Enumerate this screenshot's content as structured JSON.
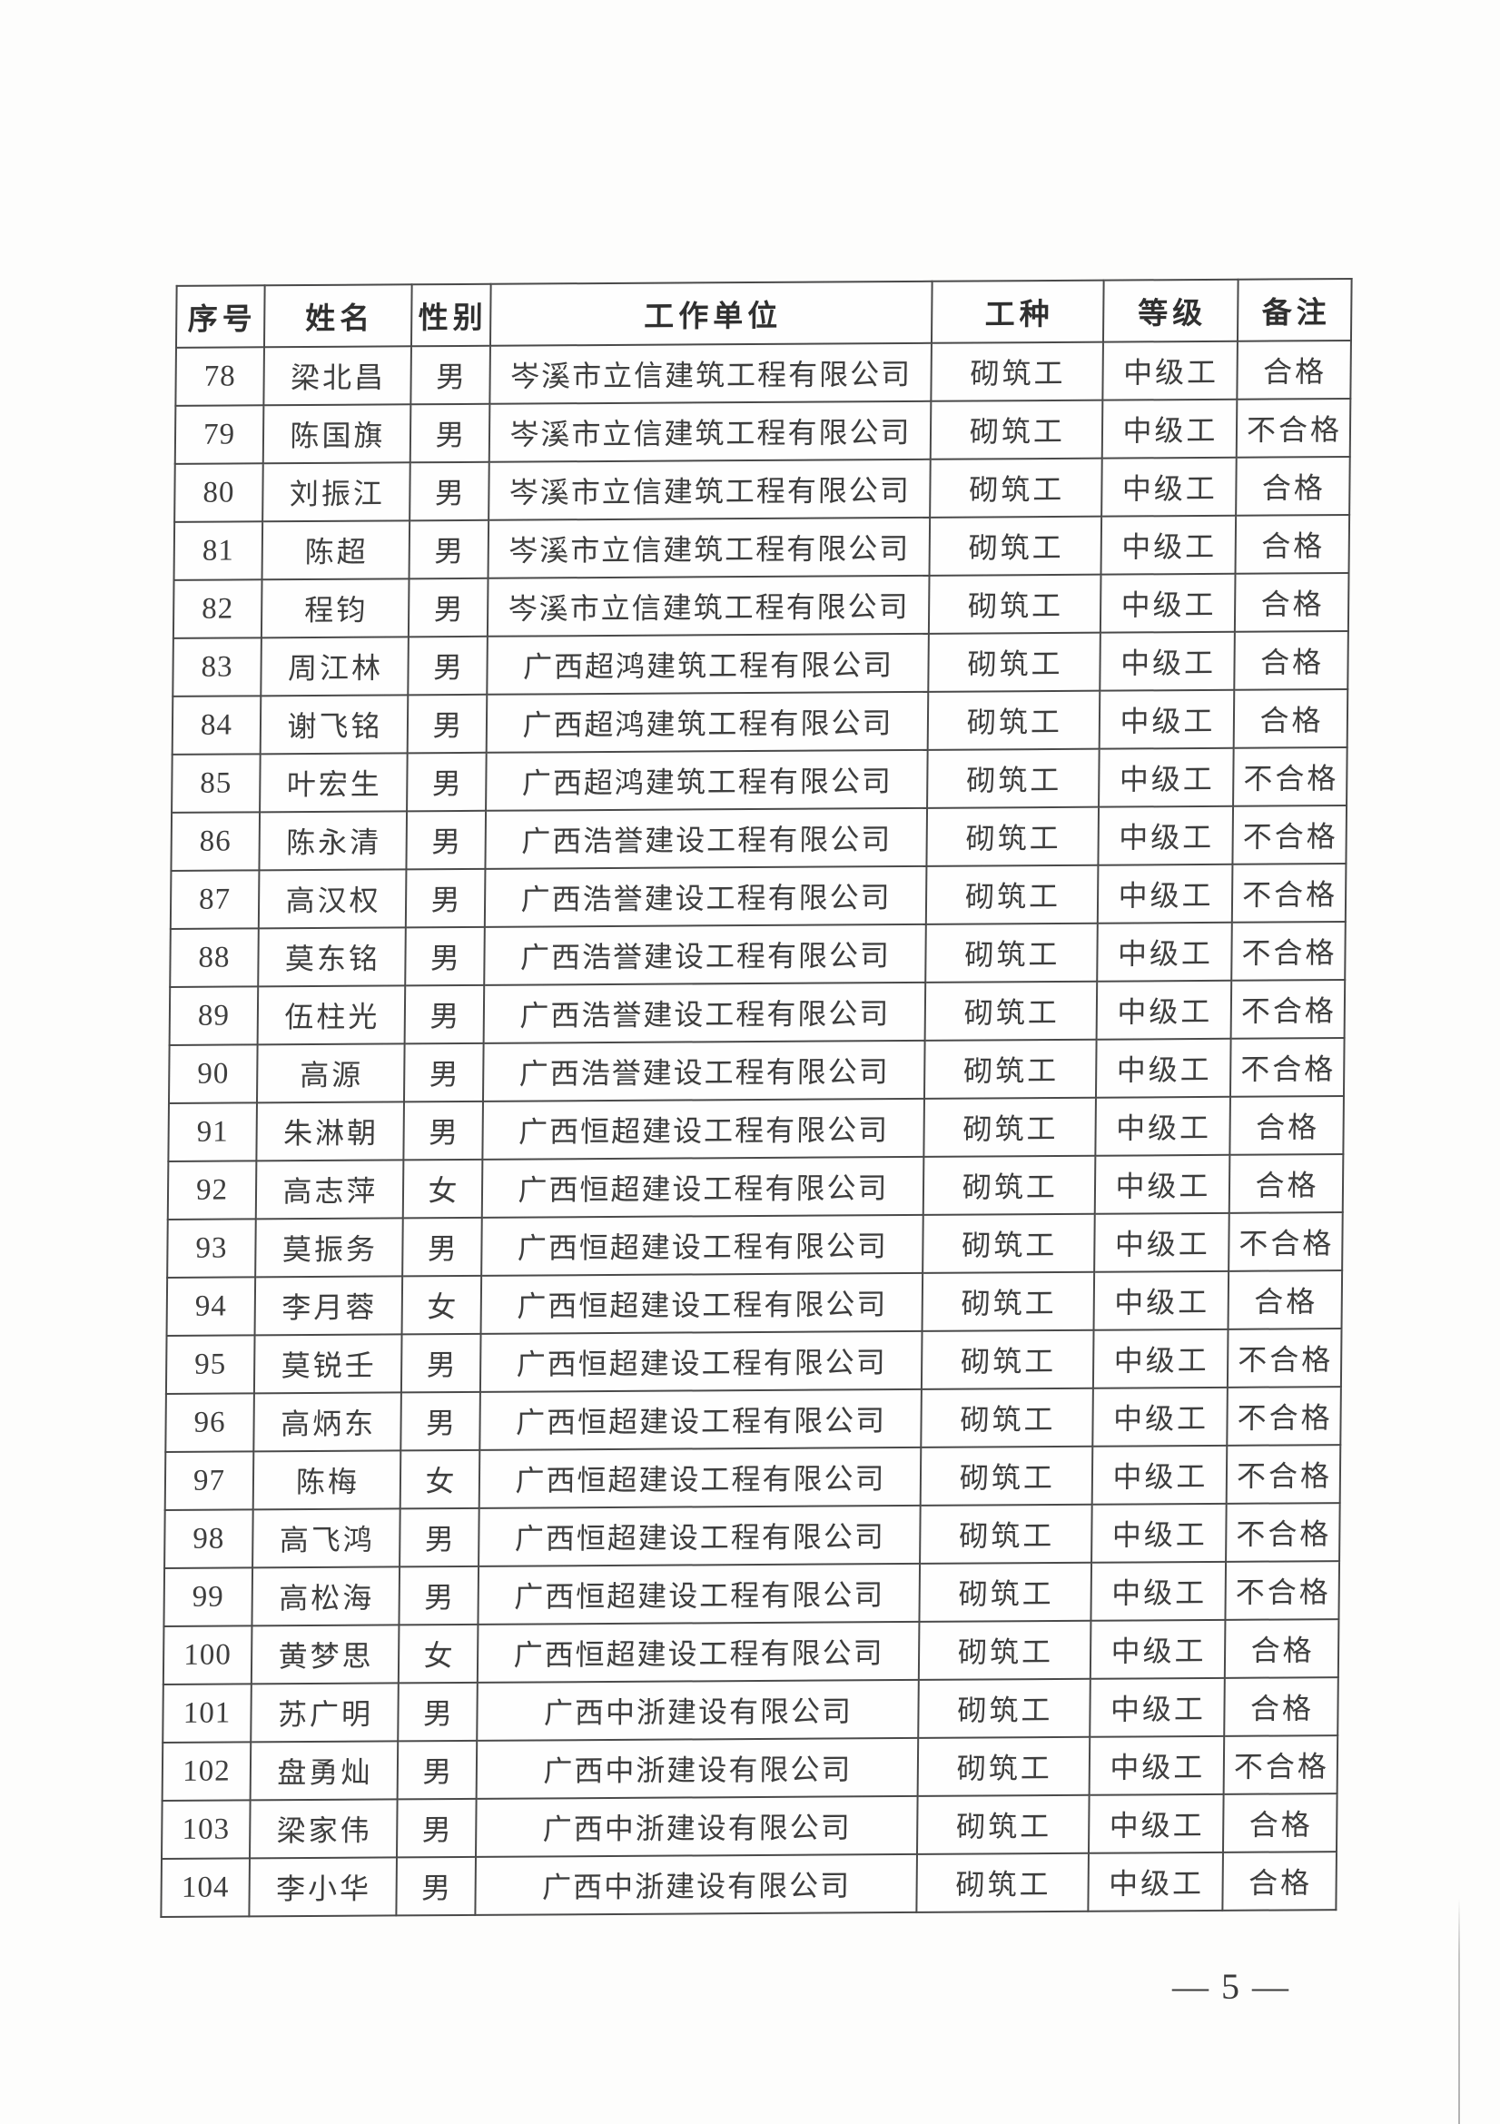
{
  "table": {
    "columns": [
      {
        "key": "no",
        "label": "序号"
      },
      {
        "key": "name",
        "label": "姓名"
      },
      {
        "key": "gender",
        "label": "性别"
      },
      {
        "key": "company",
        "label": "工作单位"
      },
      {
        "key": "trade",
        "label": "工种"
      },
      {
        "key": "level",
        "label": "等级"
      },
      {
        "key": "remark",
        "label": "备注"
      }
    ],
    "rows": [
      {
        "no": "78",
        "name": "梁北昌",
        "gender": "男",
        "company": "岑溪市立信建筑工程有限公司",
        "trade": "砌筑工",
        "level": "中级工",
        "remark": "合格"
      },
      {
        "no": "79",
        "name": "陈国旗",
        "gender": "男",
        "company": "岑溪市立信建筑工程有限公司",
        "trade": "砌筑工",
        "level": "中级工",
        "remark": "不合格"
      },
      {
        "no": "80",
        "name": "刘振江",
        "gender": "男",
        "company": "岑溪市立信建筑工程有限公司",
        "trade": "砌筑工",
        "level": "中级工",
        "remark": "合格"
      },
      {
        "no": "81",
        "name": "陈超",
        "gender": "男",
        "company": "岑溪市立信建筑工程有限公司",
        "trade": "砌筑工",
        "level": "中级工",
        "remark": "合格"
      },
      {
        "no": "82",
        "name": "程钧",
        "gender": "男",
        "company": "岑溪市立信建筑工程有限公司",
        "trade": "砌筑工",
        "level": "中级工",
        "remark": "合格"
      },
      {
        "no": "83",
        "name": "周江林",
        "gender": "男",
        "company": "广西超鸿建筑工程有限公司",
        "trade": "砌筑工",
        "level": "中级工",
        "remark": "合格"
      },
      {
        "no": "84",
        "name": "谢飞铭",
        "gender": "男",
        "company": "广西超鸿建筑工程有限公司",
        "trade": "砌筑工",
        "level": "中级工",
        "remark": "合格"
      },
      {
        "no": "85",
        "name": "叶宏生",
        "gender": "男",
        "company": "广西超鸿建筑工程有限公司",
        "trade": "砌筑工",
        "level": "中级工",
        "remark": "不合格"
      },
      {
        "no": "86",
        "name": "陈永清",
        "gender": "男",
        "company": "广西浩誉建设工程有限公司",
        "trade": "砌筑工",
        "level": "中级工",
        "remark": "不合格"
      },
      {
        "no": "87",
        "name": "高汉权",
        "gender": "男",
        "company": "广西浩誉建设工程有限公司",
        "trade": "砌筑工",
        "level": "中级工",
        "remark": "不合格"
      },
      {
        "no": "88",
        "name": "莫东铭",
        "gender": "男",
        "company": "广西浩誉建设工程有限公司",
        "trade": "砌筑工",
        "level": "中级工",
        "remark": "不合格"
      },
      {
        "no": "89",
        "name": "伍柱光",
        "gender": "男",
        "company": "广西浩誉建设工程有限公司",
        "trade": "砌筑工",
        "level": "中级工",
        "remark": "不合格"
      },
      {
        "no": "90",
        "name": "高源",
        "gender": "男",
        "company": "广西浩誉建设工程有限公司",
        "trade": "砌筑工",
        "level": "中级工",
        "remark": "不合格"
      },
      {
        "no": "91",
        "name": "朱淋朝",
        "gender": "男",
        "company": "广西恒超建设工程有限公司",
        "trade": "砌筑工",
        "level": "中级工",
        "remark": "合格"
      },
      {
        "no": "92",
        "name": "高志萍",
        "gender": "女",
        "company": "广西恒超建设工程有限公司",
        "trade": "砌筑工",
        "level": "中级工",
        "remark": "合格"
      },
      {
        "no": "93",
        "name": "莫振务",
        "gender": "男",
        "company": "广西恒超建设工程有限公司",
        "trade": "砌筑工",
        "level": "中级工",
        "remark": "不合格"
      },
      {
        "no": "94",
        "name": "李月蓉",
        "gender": "女",
        "company": "广西恒超建设工程有限公司",
        "trade": "砌筑工",
        "level": "中级工",
        "remark": "合格"
      },
      {
        "no": "95",
        "name": "莫锐壬",
        "gender": "男",
        "company": "广西恒超建设工程有限公司",
        "trade": "砌筑工",
        "level": "中级工",
        "remark": "不合格"
      },
      {
        "no": "96",
        "name": "高炳东",
        "gender": "男",
        "company": "广西恒超建设工程有限公司",
        "trade": "砌筑工",
        "level": "中级工",
        "remark": "不合格"
      },
      {
        "no": "97",
        "name": "陈梅",
        "gender": "女",
        "company": "广西恒超建设工程有限公司",
        "trade": "砌筑工",
        "level": "中级工",
        "remark": "不合格"
      },
      {
        "no": "98",
        "name": "高飞鸿",
        "gender": "男",
        "company": "广西恒超建设工程有限公司",
        "trade": "砌筑工",
        "level": "中级工",
        "remark": "不合格"
      },
      {
        "no": "99",
        "name": "高松海",
        "gender": "男",
        "company": "广西恒超建设工程有限公司",
        "trade": "砌筑工",
        "level": "中级工",
        "remark": "不合格"
      },
      {
        "no": "100",
        "name": "黄梦思",
        "gender": "女",
        "company": "广西恒超建设工程有限公司",
        "trade": "砌筑工",
        "level": "中级工",
        "remark": "合格"
      },
      {
        "no": "101",
        "name": "苏广明",
        "gender": "男",
        "company": "广西中浙建设有限公司",
        "trade": "砌筑工",
        "level": "中级工",
        "remark": "合格"
      },
      {
        "no": "102",
        "name": "盘勇灿",
        "gender": "男",
        "company": "广西中浙建设有限公司",
        "trade": "砌筑工",
        "level": "中级工",
        "remark": "不合格"
      },
      {
        "no": "103",
        "name": "梁家伟",
        "gender": "男",
        "company": "广西中浙建设有限公司",
        "trade": "砌筑工",
        "level": "中级工",
        "remark": "合格"
      },
      {
        "no": "104",
        "name": "李小华",
        "gender": "男",
        "company": "广西中浙建设有限公司",
        "trade": "砌筑工",
        "level": "中级工",
        "remark": "合格"
      }
    ]
  },
  "footer": {
    "dash_left": "—",
    "page_number": "5",
    "dash_right": "—"
  }
}
